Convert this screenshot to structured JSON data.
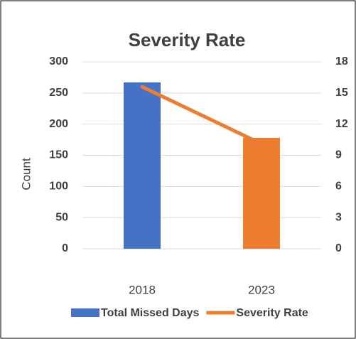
{
  "chart_data": {
    "type": "bar-line",
    "title": "Severity Rate",
    "y_label": "Count",
    "categories": [
      "2018",
      "2023"
    ],
    "series": [
      {
        "name": "Total Missed Days",
        "type": "bar",
        "color": "#4472c4",
        "point_colors": [
          "#4472c4",
          "#ed7d31"
        ],
        "values": [
          267,
          178
        ]
      },
      {
        "name": "Severity Rate",
        "type": "line",
        "color": "#ed7d31",
        "axis": "y2",
        "values": [
          15.6,
          10.1
        ]
      }
    ],
    "ylim": [
      0,
      300
    ],
    "yticks": [
      0,
      50,
      100,
      150,
      200,
      250,
      300
    ],
    "y2lim": [
      0,
      18
    ],
    "y2ticks": [
      0,
      3,
      6,
      9,
      12,
      15,
      18
    ],
    "grid": true,
    "legend": "bottom"
  }
}
